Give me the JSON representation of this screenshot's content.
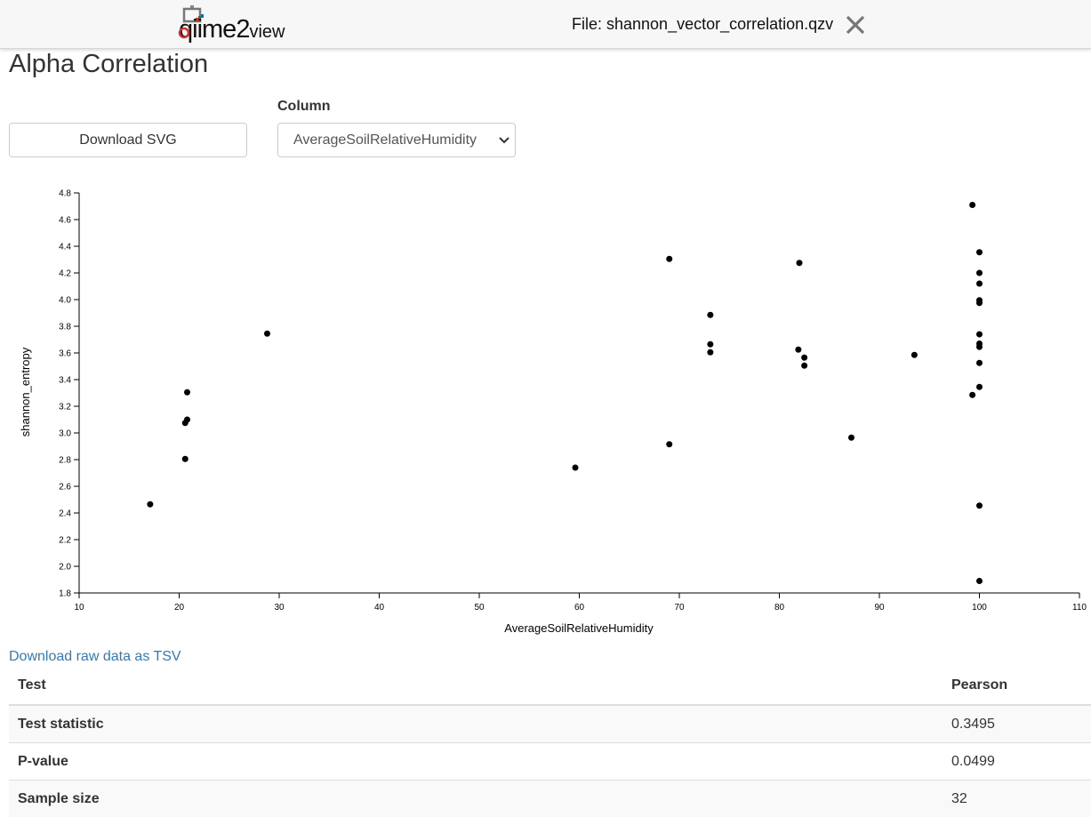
{
  "header": {
    "logo": {
      "name": "qiime",
      "number": "2",
      "suffix": "view"
    },
    "file_label": "File: shannon_vector_correlation.qzv"
  },
  "page": {
    "title": "Alpha Correlation",
    "download_svg_label": "Download SVG",
    "column_label": "Column",
    "column_selected": "AverageSoilRelativeHumidity",
    "download_tsv_label": "Download raw data as TSV"
  },
  "chart_data": {
    "type": "scatter",
    "xlabel": "AverageSoilRelativeHumidity",
    "ylabel": "shannon_entropy",
    "xlim": [
      10,
      110
    ],
    "ylim": [
      1.8,
      4.8
    ],
    "xticks": [
      10,
      20,
      30,
      40,
      50,
      60,
      70,
      80,
      90,
      100,
      110
    ],
    "yticks": [
      1.8,
      2.0,
      2.2,
      2.4,
      2.6,
      2.8,
      3.0,
      3.2,
      3.4,
      3.6,
      3.8,
      4.0,
      4.2,
      4.4,
      4.6,
      4.8
    ],
    "grid": false,
    "point_color": "#000000",
    "points": [
      {
        "x": 17.1,
        "y": 2.465
      },
      {
        "x": 20.6,
        "y": 2.805
      },
      {
        "x": 20.6,
        "y": 3.075
      },
      {
        "x": 20.8,
        "y": 3.1
      },
      {
        "x": 20.8,
        "y": 3.305
      },
      {
        "x": 28.8,
        "y": 3.745
      },
      {
        "x": 59.6,
        "y": 2.74
      },
      {
        "x": 69.0,
        "y": 2.915
      },
      {
        "x": 69.0,
        "y": 4.305
      },
      {
        "x": 73.1,
        "y": 3.605
      },
      {
        "x": 73.1,
        "y": 3.665
      },
      {
        "x": 73.1,
        "y": 3.885
      },
      {
        "x": 81.9,
        "y": 3.625
      },
      {
        "x": 82.0,
        "y": 4.275
      },
      {
        "x": 82.5,
        "y": 3.565
      },
      {
        "x": 82.5,
        "y": 3.505
      },
      {
        "x": 87.2,
        "y": 2.965
      },
      {
        "x": 93.5,
        "y": 3.585
      },
      {
        "x": 99.3,
        "y": 3.285
      },
      {
        "x": 99.3,
        "y": 4.71
      },
      {
        "x": 100.0,
        "y": 1.89
      },
      {
        "x": 100.0,
        "y": 2.455
      },
      {
        "x": 100.0,
        "y": 3.345
      },
      {
        "x": 100.0,
        "y": 3.525
      },
      {
        "x": 100.0,
        "y": 3.645
      },
      {
        "x": 100.0,
        "y": 3.67
      },
      {
        "x": 100.0,
        "y": 3.74
      },
      {
        "x": 100.0,
        "y": 3.975
      },
      {
        "x": 100.0,
        "y": 3.995
      },
      {
        "x": 100.0,
        "y": 4.12
      },
      {
        "x": 100.0,
        "y": 4.2
      },
      {
        "x": 100.0,
        "y": 4.355
      }
    ]
  },
  "stats": {
    "header": {
      "test": "Test",
      "method": "Pearson"
    },
    "rows": [
      {
        "label": "Test statistic",
        "value": "0.3495"
      },
      {
        "label": "P-value",
        "value": "0.0499"
      },
      {
        "label": "Sample size",
        "value": "32"
      }
    ]
  }
}
